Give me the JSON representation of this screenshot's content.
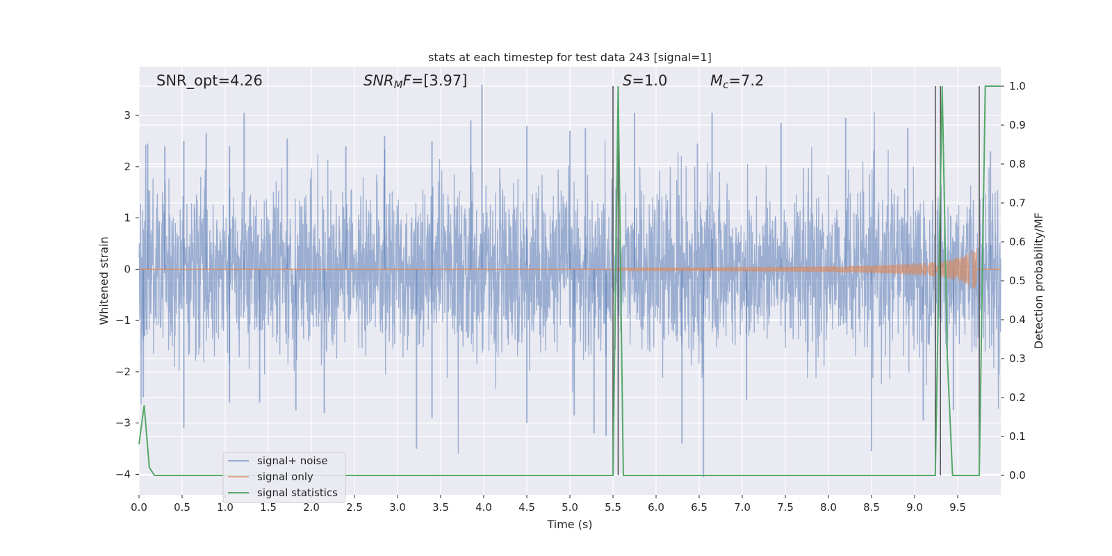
{
  "chart_data": {
    "type": "line",
    "title": "stats at each timestep for test data 243 [signal=1]",
    "xlabel": "Time (s)",
    "ylabel_left": "Whitened strain",
    "ylabel_right": "Detection probability/MF",
    "xlim": [
      0.0,
      10.0
    ],
    "ylim_left": [
      -4.4,
      3.95
    ],
    "ylim_right": [
      -0.05,
      1.05
    ],
    "x_ticks": [
      "0.0",
      "0.5",
      "1.0",
      "1.5",
      "2.0",
      "2.5",
      "3.0",
      "3.5",
      "4.0",
      "4.5",
      "5.0",
      "5.5",
      "6.0",
      "6.5",
      "7.0",
      "7.5",
      "8.0",
      "8.5",
      "9.0",
      "9.5"
    ],
    "y_ticks_left": [
      "3",
      "2",
      "1",
      "0",
      "−1",
      "−2",
      "−3",
      "−4"
    ],
    "y_ticks_right": [
      "1.0",
      "0.9",
      "0.8",
      "0.7",
      "0.6",
      "0.5",
      "0.4",
      "0.3",
      "0.2",
      "0.1",
      "0.0"
    ],
    "grid": true,
    "legend_position": "lower-left",
    "annotations": {
      "snr_opt": "SNR_opt=4.26",
      "snr_mf_sym": "SNR",
      "snr_mf_sub": "M",
      "snr_mf_sym2": "F",
      "snr_mf_val": "=[3.97]",
      "s_sym": "S",
      "s_val": "=1.0",
      "mc_sym": "M",
      "mc_sub": "c",
      "mc_val": "=7.2"
    },
    "series": [
      {
        "name": "signal+ noise",
        "color": "#4c72b0",
        "kind": "noise",
        "noise_std": 0.8,
        "y_range": [
          -3.6,
          3.6
        ],
        "peak_ticks": [
          [
            0.1,
            2.45
          ],
          [
            0.3,
            2.4
          ],
          [
            0.52,
            2.5
          ],
          [
            0.78,
            2.65
          ],
          [
            1.05,
            2.4
          ],
          [
            1.22,
            3.05
          ],
          [
            1.72,
            2.55
          ],
          [
            2.4,
            2.4
          ],
          [
            2.85,
            2.6
          ],
          [
            3.4,
            2.5
          ],
          [
            3.85,
            2.9
          ],
          [
            3.98,
            3.6
          ],
          [
            4.5,
            2.8
          ],
          [
            5.0,
            2.7
          ],
          [
            5.18,
            2.75
          ],
          [
            5.75,
            3.05
          ],
          [
            6.65,
            3.05
          ],
          [
            6.48,
            2.45
          ],
          [
            7.45,
            2.85
          ],
          [
            8.2,
            2.95
          ],
          [
            8.92,
            2.75
          ],
          [
            9.3,
            2.45
          ],
          [
            9.88,
            2.3
          ]
        ],
        "trough_ticks": [
          [
            0.05,
            -2.5
          ],
          [
            0.52,
            -3.1
          ],
          [
            1.05,
            -2.6
          ],
          [
            1.4,
            -2.6
          ],
          [
            1.82,
            -2.75
          ],
          [
            2.15,
            -2.8
          ],
          [
            3.22,
            -3.5
          ],
          [
            3.4,
            -2.9
          ],
          [
            4.5,
            -3.0
          ],
          [
            5.05,
            -2.85
          ],
          [
            5.28,
            -3.2
          ],
          [
            5.42,
            -3.25
          ],
          [
            6.3,
            -3.4
          ],
          [
            6.55,
            -4.05
          ],
          [
            7.05,
            -2.55
          ],
          [
            8.5,
            -3.55
          ],
          [
            9.1,
            -2.95
          ],
          [
            9.45,
            -2.75
          ]
        ]
      },
      {
        "name": "signal only",
        "color": "#dd8452",
        "kind": "chirp",
        "start_time": 5.5,
        "end_time": 9.72,
        "peak_amplitude": 0.45
      },
      {
        "name": "signal statistics",
        "color": "#55a868",
        "kind": "line",
        "axis": "right",
        "x": [
          0.0,
          0.06,
          0.12,
          0.18,
          0.5,
          1.0,
          2.0,
          3.0,
          4.0,
          5.0,
          5.5,
          5.56,
          5.62,
          6.0,
          7.0,
          8.0,
          9.0,
          9.24,
          9.32,
          9.38,
          9.44,
          9.6,
          9.75,
          9.82,
          9.9,
          10.0
        ],
        "y": [
          0.08,
          0.18,
          0.02,
          0.0,
          0.0,
          0.0,
          0.0,
          0.0,
          0.0,
          0.0,
          0.0,
          1.0,
          0.0,
          0.0,
          0.0,
          0.0,
          0.0,
          0.0,
          1.0,
          0.3,
          0.0,
          0.0,
          0.0,
          1.0,
          1.0,
          1.0
        ]
      }
    ],
    "vertical_markers": {
      "color": "#555555",
      "x": [
        5.5,
        5.56,
        9.24,
        9.3,
        9.75
      ]
    }
  }
}
